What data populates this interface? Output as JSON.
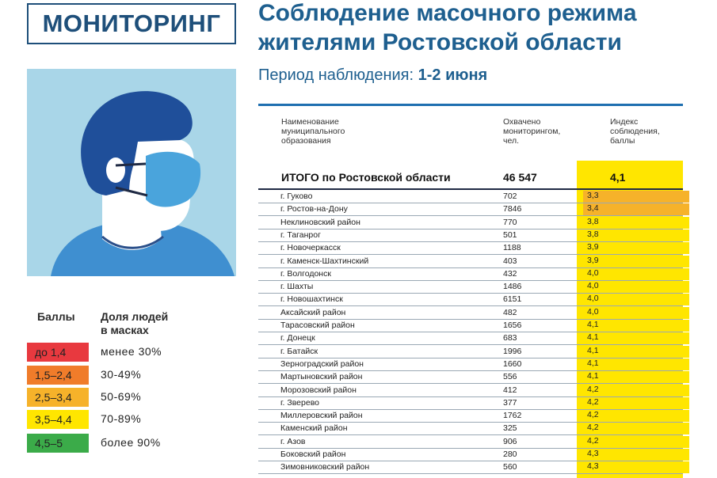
{
  "badge": "МОНИТОРИНГ",
  "title_line1": "Соблюдение масочного режима",
  "title_line2": "жителями Ростовской области",
  "period_label": "Период наблюдения:",
  "period_value": "1-2 июня",
  "colors": {
    "accent": "#1e5f8f",
    "red": "#e8393f",
    "orange": "#f07c2a",
    "amber": "#f6b22a",
    "yellow": "#ffe600",
    "green": "#3bab49"
  },
  "legend": {
    "col1": "Баллы",
    "col2_line1": "Доля людей",
    "col2_line2": "в масках",
    "items": [
      {
        "range": "до 1,4",
        "share": "менее 30%",
        "color": "#e8393f"
      },
      {
        "range": "1,5–2,4",
        "share": "30-49%",
        "color": "#f07c2a"
      },
      {
        "range": "2,5–3,4",
        "share": "50-69%",
        "color": "#f6b22a"
      },
      {
        "range": "3,5–4,4",
        "share": "70-89%",
        "color": "#ffe600"
      },
      {
        "range": "4,5–5",
        "share": "более 90%",
        "color": "#3bab49"
      }
    ]
  },
  "table": {
    "h1_l1": "Наименование",
    "h1_l2": "муниципального",
    "h1_l3": "образования",
    "h2_l1": "Охвачено",
    "h2_l2": "мониторингом,",
    "h2_l3": "чел.",
    "h3_l1": "Индекс",
    "h3_l2": "соблюдения,",
    "h3_l3": "баллы",
    "total_name": "ИТОГО по Ростовской области",
    "total_count": "46 547",
    "total_index": "4,1",
    "rows": [
      {
        "name": "г. Гуково",
        "count": "702",
        "index": "3,3"
      },
      {
        "name": "г. Ростов-на-Дону",
        "count": "7846",
        "index": "3,4"
      },
      {
        "name": "Неклиновский район",
        "count": "770",
        "index": "3,8"
      },
      {
        "name": "г. Таганрог",
        "count": "501",
        "index": "3,8"
      },
      {
        "name": "г. Новочеркасск",
        "count": "1188",
        "index": "3,9"
      },
      {
        "name": "г. Каменск-Шахтинский",
        "count": "403",
        "index": "3,9"
      },
      {
        "name": "г. Волгодонск",
        "count": "432",
        "index": "4,0"
      },
      {
        "name": "г. Шахты",
        "count": "1486",
        "index": "4,0"
      },
      {
        "name": "г. Новошахтинск",
        "count": "6151",
        "index": "4,0"
      },
      {
        "name": "Аксайский район",
        "count": "482",
        "index": "4,0"
      },
      {
        "name": "Тарасовский район",
        "count": "1656",
        "index": "4,1"
      },
      {
        "name": "г. Донецк",
        "count": "683",
        "index": "4,1"
      },
      {
        "name": "г. Батайск",
        "count": "1996",
        "index": "4,1"
      },
      {
        "name": "Зерноградский район",
        "count": "1660",
        "index": "4,1"
      },
      {
        "name": "Мартыновский район",
        "count": "556",
        "index": "4,1"
      },
      {
        "name": "Морозовский район",
        "count": "412",
        "index": "4,2"
      },
      {
        "name": "г. Зверево",
        "count": "377",
        "index": "4,2"
      },
      {
        "name": "Миллеровский район",
        "count": "1762",
        "index": "4,2"
      },
      {
        "name": "Каменский район",
        "count": "325",
        "index": "4,2"
      },
      {
        "name": "г. Азов",
        "count": "906",
        "index": "4,2"
      },
      {
        "name": "Боковский район",
        "count": "280",
        "index": "4,3"
      },
      {
        "name": "Зимовниковский район",
        "count": "560",
        "index": "4,3"
      }
    ]
  }
}
